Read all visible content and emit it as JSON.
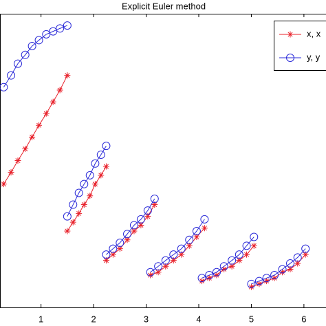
{
  "chart_data": {
    "type": "line",
    "title": "Explicit Euler method",
    "x": [
      0.29,
      0.43,
      0.56,
      0.7,
      0.83,
      0.96,
      1.1,
      1.23,
      1.36,
      1.5,
      null,
      1.5,
      1.61,
      1.72,
      1.82,
      1.93,
      2.03,
      2.14,
      2.24,
      null,
      2.24,
      2.37,
      2.5,
      2.64,
      2.77,
      2.9,
      3.03,
      3.16,
      null,
      3.08,
      3.23,
      3.37,
      3.52,
      3.67,
      3.82,
      3.96,
      4.11,
      null,
      4.06,
      4.2,
      4.34,
      4.48,
      4.63,
      4.77,
      4.91,
      5.05,
      null,
      5.0,
      5.15,
      5.29,
      5.44,
      5.59,
      5.74,
      5.88,
      6.03
    ],
    "series": [
      {
        "name": "x, x",
        "color": "#e8202a",
        "marker": "asterisk",
        "values": [
          0.42,
          0.46,
          0.5,
          0.54,
          0.58,
          0.62,
          0.66,
          0.7,
          0.74,
          0.79,
          null,
          0.26,
          0.29,
          0.32,
          0.35,
          0.38,
          0.42,
          0.45,
          0.48,
          null,
          0.16,
          0.18,
          0.2,
          0.23,
          0.26,
          0.28,
          0.31,
          0.35,
          null,
          0.11,
          0.12,
          0.14,
          0.16,
          0.18,
          0.21,
          0.24,
          0.27,
          null,
          0.09,
          0.1,
          0.11,
          0.13,
          0.14,
          0.16,
          0.18,
          0.21,
          null,
          0.07,
          0.08,
          0.09,
          0.1,
          0.12,
          0.13,
          0.15,
          0.18
        ]
      },
      {
        "name": "y, y",
        "color": "#2a2ad8",
        "marker": "circle",
        "values": [
          0.75,
          0.79,
          0.83,
          0.86,
          0.89,
          0.91,
          0.93,
          0.94,
          0.95,
          0.96,
          null,
          0.31,
          0.35,
          0.39,
          0.42,
          0.45,
          0.49,
          0.52,
          0.55,
          null,
          0.18,
          0.2,
          0.22,
          0.25,
          0.28,
          0.3,
          0.33,
          0.37,
          null,
          0.12,
          0.14,
          0.16,
          0.18,
          0.2,
          0.23,
          0.26,
          0.3,
          null,
          0.1,
          0.11,
          0.12,
          0.14,
          0.16,
          0.18,
          0.21,
          0.24,
          null,
          0.08,
          0.09,
          0.1,
          0.11,
          0.13,
          0.15,
          0.17,
          0.2
        ]
      }
    ],
    "xlim": [
      0.22,
      6.42
    ],
    "xticks": [
      1,
      2,
      3,
      4,
      5,
      6
    ],
    "ylim": [
      0,
      1
    ],
    "legend": "upper right"
  }
}
